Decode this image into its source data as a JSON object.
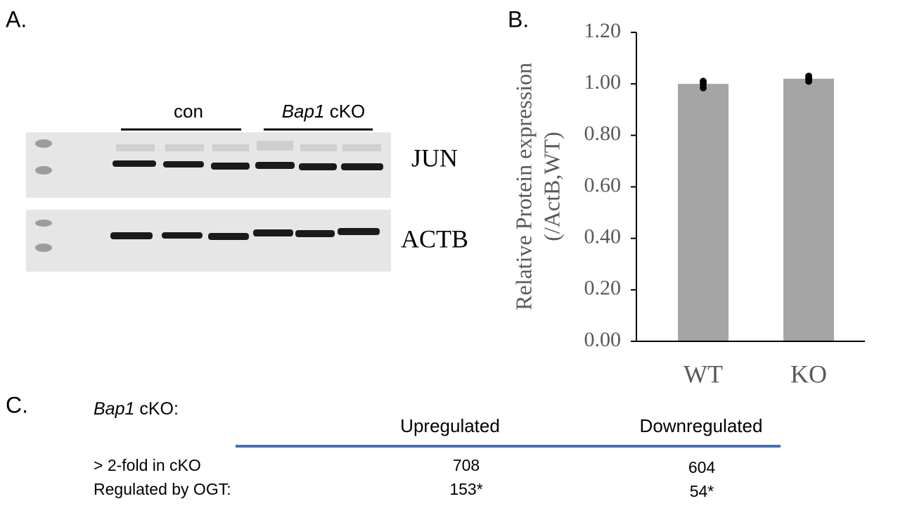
{
  "panels": {
    "a": "A.",
    "b": "B.",
    "c": "C."
  },
  "blot": {
    "groups": [
      {
        "label": "con"
      },
      {
        "gene": "Bap1",
        "label": "cKO"
      }
    ],
    "rows": [
      "JUN",
      "ACTB"
    ]
  },
  "chart_data": {
    "type": "bar",
    "ylabel": [
      "Relative Protein expression",
      "(/ActB,WT)"
    ],
    "categories": [
      "WT",
      "KO"
    ],
    "values": [
      1.0,
      1.02
    ],
    "color": "#a5a5a5",
    "points": [
      [
        0.985,
        1.0,
        1.01
      ],
      [
        1.01,
        1.02,
        1.03
      ]
    ],
    "point_color": "#000000",
    "ylim": [
      0,
      1.2
    ],
    "yticks": [
      {
        "value": 0,
        "label": "0.00"
      },
      {
        "value": 0.2,
        "label": "0.20"
      },
      {
        "value": 0.4,
        "label": "0.40"
      },
      {
        "value": 0.6,
        "label": "0.60"
      },
      {
        "value": 0.8,
        "label": "0.80"
      },
      {
        "value": 1,
        "label": "1.00"
      },
      {
        "value": 1.2,
        "label": "1.20"
      }
    ]
  },
  "table": {
    "gene": "Bap1",
    "title": "cKO:",
    "columns": [
      "Upregulated",
      "Downregulated"
    ],
    "rows": [
      [
        "> 2-fold in cKO",
        "708",
        "604"
      ],
      [
        "Regulated by OGT:",
        "153*",
        "54*"
      ]
    ]
  }
}
